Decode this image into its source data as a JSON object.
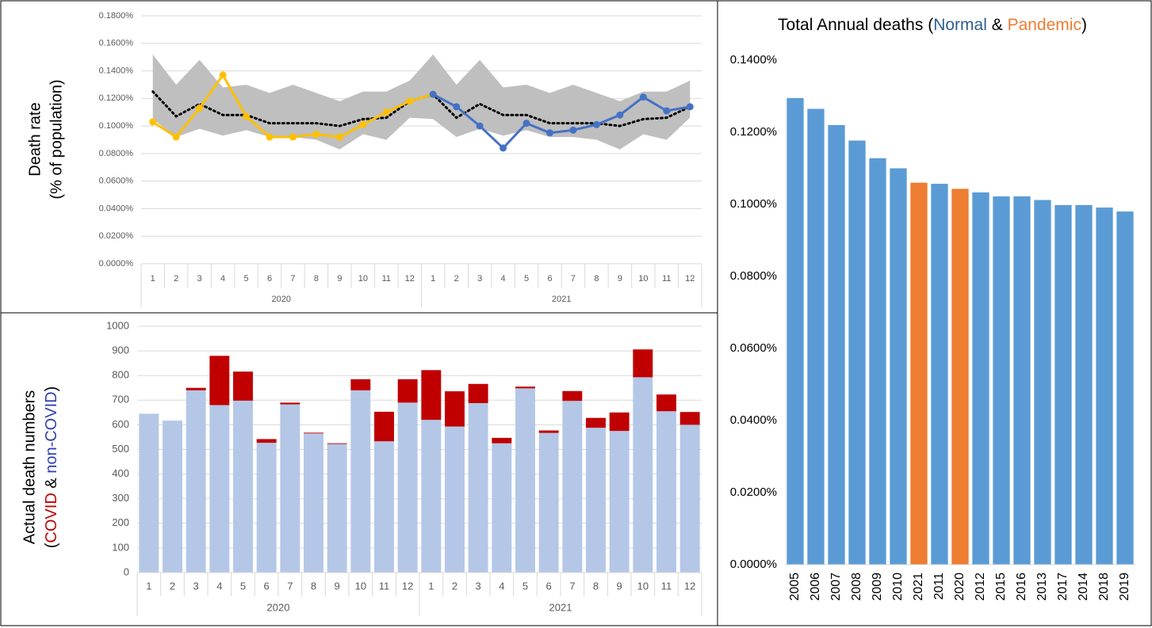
{
  "chart_data": [
    {
      "type": "line",
      "ylabel": [
        "Death rate",
        "(% of population)"
      ],
      "categories": [
        1,
        2,
        3,
        4,
        5,
        6,
        7,
        8,
        9,
        10,
        11,
        12,
        1,
        2,
        3,
        4,
        5,
        6,
        7,
        8,
        9,
        10,
        11,
        12
      ],
      "x_groups": [
        "2020",
        "2021"
      ],
      "ylim": [
        0,
        0.18
      ],
      "yticks": [
        {
          "value": 0,
          "label": "0.0000%"
        },
        {
          "value": 0.02,
          "label": "0.0200%"
        },
        {
          "value": 0.04,
          "label": "0.0400%"
        },
        {
          "value": 0.06,
          "label": "0.0600%"
        },
        {
          "value": 0.08,
          "label": "0.0800%"
        },
        {
          "value": 0.1,
          "label": "0.1000%"
        },
        {
          "value": 0.12,
          "label": "0.1200%"
        },
        {
          "value": 0.14,
          "label": "0.1400%"
        },
        {
          "value": 0.16,
          "label": "0.1600%"
        },
        {
          "value": 0.18,
          "label": "0.1800%"
        }
      ],
      "grid": true,
      "band": {
        "color": "#bfbfbf",
        "high": [
          0.152,
          0.13,
          0.148,
          0.128,
          0.13,
          0.124,
          0.13,
          0.124,
          0.118,
          0.125,
          0.125,
          0.133,
          0.152,
          0.13,
          0.148,
          0.128,
          0.13,
          0.124,
          0.13,
          0.124,
          0.118,
          0.125,
          0.125,
          0.133
        ],
        "low": [
          0.105,
          0.092,
          0.098,
          0.093,
          0.097,
          0.092,
          0.092,
          0.09,
          0.083,
          0.094,
          0.09,
          0.106,
          0.105,
          0.092,
          0.098,
          0.093,
          0.097,
          0.092,
          0.092,
          0.09,
          0.083,
          0.094,
          0.09,
          0.106
        ]
      },
      "series": [
        {
          "color": "#000000",
          "style": "dotted",
          "values": [
            0.125,
            0.107,
            0.116,
            0.108,
            0.108,
            0.102,
            0.102,
            0.102,
            0.1,
            0.105,
            0.106,
            0.118,
            0.123,
            0.106,
            0.116,
            0.108,
            0.108,
            0.102,
            0.102,
            0.102,
            0.1,
            0.105,
            0.106,
            0.114
          ]
        },
        {
          "color": "#ffc000",
          "markers": true,
          "values": [
            0.103,
            0.092,
            0.113,
            0.137,
            0.107,
            0.092,
            0.092,
            0.094,
            0.092,
            0.101,
            0.11,
            0.118,
            0.123,
            null,
            null,
            null,
            null,
            null,
            null,
            null,
            null,
            null,
            null,
            null
          ]
        },
        {
          "color": "#4472c4",
          "markers": true,
          "values": [
            null,
            null,
            null,
            null,
            null,
            null,
            null,
            null,
            null,
            null,
            null,
            null,
            0.123,
            0.114,
            0.1,
            0.084,
            0.102,
            0.095,
            0.097,
            0.101,
            0.108,
            0.121,
            0.111,
            0.114
          ]
        }
      ]
    },
    {
      "type": "stacked_bar",
      "ylabel": [
        "Actual death numbers",
        [
          {
            "text": "("
          },
          {
            "text": "COVID",
            "color": "#c00000"
          },
          {
            "text": " & "
          },
          {
            "text": "non-COVID",
            "color": "#2f3fb0"
          },
          {
            "text": ")"
          }
        ]
      ],
      "categories": [
        1,
        2,
        3,
        4,
        5,
        6,
        7,
        8,
        9,
        10,
        11,
        12,
        1,
        2,
        3,
        4,
        5,
        6,
        7,
        8,
        9,
        10,
        11,
        12
      ],
      "x_groups": [
        "2020",
        "2021"
      ],
      "ylim": [
        0,
        1000
      ],
      "yticks": [
        0,
        100,
        200,
        300,
        400,
        500,
        600,
        700,
        800,
        900,
        1000
      ],
      "grid": true,
      "series": [
        {
          "color": "#b4c7e7",
          "values": [
            645,
            617,
            740,
            680,
            698,
            527,
            683,
            565,
            522,
            740,
            533,
            690,
            620,
            593,
            688,
            525,
            748,
            567,
            697,
            588,
            575,
            793,
            655,
            600
          ]
        },
        {
          "color": "#c00000",
          "values": [
            0,
            0,
            10,
            200,
            118,
            15,
            7,
            3,
            3,
            45,
            120,
            95,
            202,
            143,
            78,
            22,
            7,
            10,
            40,
            40,
            75,
            113,
            68,
            52
          ]
        }
      ]
    },
    {
      "type": "bar",
      "title": [
        {
          "text": "Total Annual deaths ("
        },
        {
          "text": "Normal",
          "color": "#2e5f8f"
        },
        {
          "text": " & "
        },
        {
          "text": "Pandemic",
          "color": "#ed7d31"
        },
        {
          "text": ")"
        }
      ],
      "categories": [
        "2005",
        "2006",
        "2007",
        "2008",
        "2009",
        "2010",
        "2021",
        "2011",
        "2020",
        "2012",
        "2015",
        "2016",
        "2013",
        "2017",
        "2014",
        "2018",
        "2019"
      ],
      "values": [
        0.1295,
        0.1265,
        0.122,
        0.1177,
        0.1128,
        0.11,
        0.106,
        0.1057,
        0.1043,
        0.1033,
        0.1022,
        0.1022,
        0.1012,
        0.0998,
        0.0998,
        0.0991,
        0.098
      ],
      "colors": [
        "#5b9bd5",
        "#5b9bd5",
        "#5b9bd5",
        "#5b9bd5",
        "#5b9bd5",
        "#5b9bd5",
        "#ed7d31",
        "#5b9bd5",
        "#ed7d31",
        "#5b9bd5",
        "#5b9bd5",
        "#5b9bd5",
        "#5b9bd5",
        "#5b9bd5",
        "#5b9bd5",
        "#5b9bd5",
        "#5b9bd5"
      ],
      "ylim": [
        0,
        0.14
      ],
      "yticks": [
        {
          "value": 0,
          "label": "0.0000%"
        },
        {
          "value": 0.02,
          "label": "0.0200%"
        },
        {
          "value": 0.04,
          "label": "0.0400%"
        },
        {
          "value": 0.06,
          "label": "0.0600%"
        },
        {
          "value": 0.08,
          "label": "0.0800%"
        },
        {
          "value": 0.1,
          "label": "0.1000%"
        },
        {
          "value": 0.12,
          "label": "0.1200%"
        },
        {
          "value": 0.14,
          "label": "0.1400%"
        }
      ],
      "grid": false
    }
  ]
}
